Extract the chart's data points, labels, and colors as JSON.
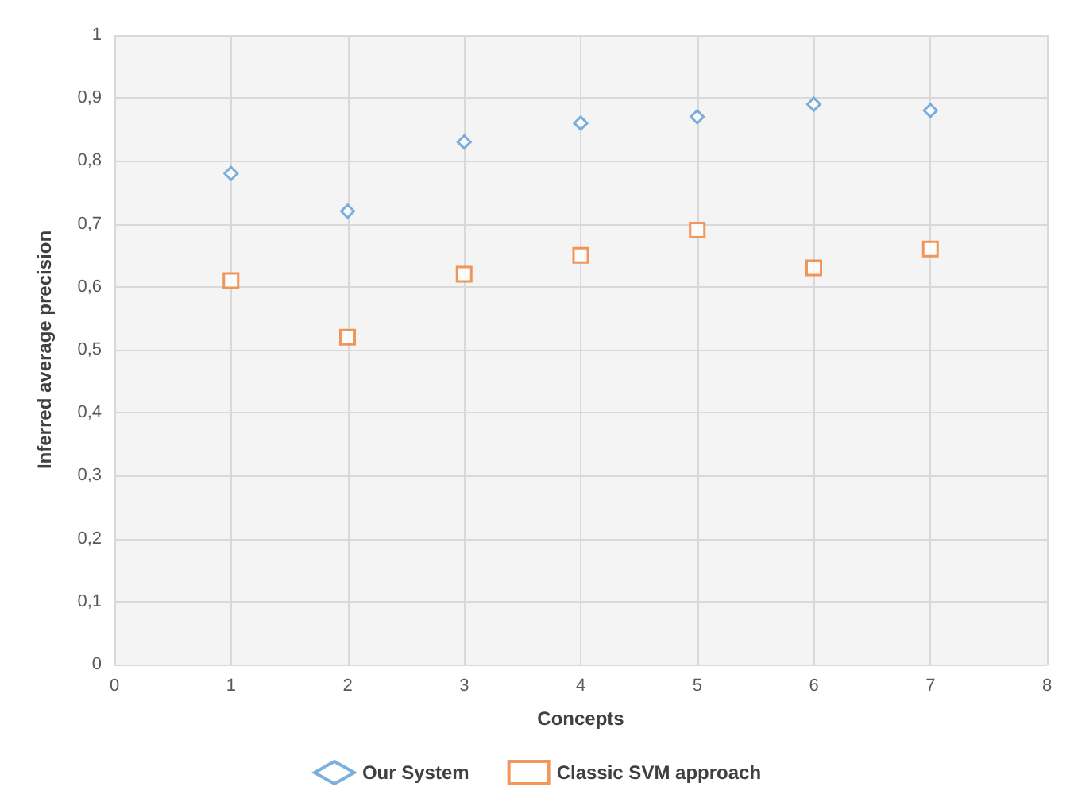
{
  "chart_data": {
    "type": "scatter",
    "xlabel": "Concepts",
    "ylabel": "Inferred average precision",
    "x": [
      1,
      2,
      3,
      4,
      5,
      6,
      7
    ],
    "series": [
      {
        "name": "Our System",
        "color": "#5b9bd5",
        "marker": "diamond",
        "values": [
          0.78,
          0.72,
          0.83,
          0.86,
          0.87,
          0.89,
          0.88
        ]
      },
      {
        "name": "Classic SVM approach",
        "color": "#ed7d31",
        "marker": "square",
        "values": [
          0.61,
          0.52,
          0.62,
          0.65,
          0.69,
          0.63,
          0.66
        ]
      }
    ],
    "xlim": [
      0,
      8
    ],
    "xticks": [
      0,
      1,
      2,
      3,
      4,
      5,
      6,
      7,
      8
    ],
    "ylim": [
      0,
      1
    ],
    "yticks": [
      0,
      {
        "value": 0.1,
        "label": "0,1"
      },
      {
        "value": 0.2,
        "label": "0,2"
      },
      {
        "value": 0.3,
        "label": "0,3"
      },
      {
        "value": 0.4,
        "label": "0,4"
      },
      {
        "value": 0.5,
        "label": "0,5"
      },
      {
        "value": 0.6,
        "label": "0,6"
      },
      {
        "value": 0.7,
        "label": "0,7"
      },
      {
        "value": 0.8,
        "label": "0,8"
      },
      {
        "value": 0.9,
        "label": "0,9"
      },
      1
    ],
    "grid": true,
    "legend": "bottom"
  }
}
